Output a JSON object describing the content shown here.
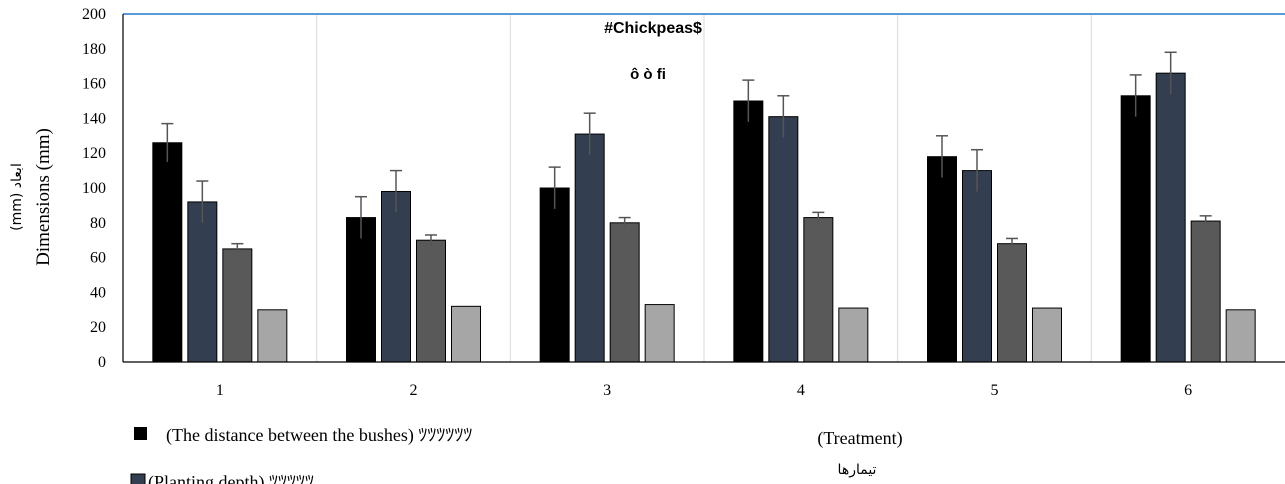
{
  "chart_data": {
    "type": "bar",
    "title": "#Chickpeas$",
    "subtitle": "ô ò fi",
    "ylabel": "Dimensions (mm)",
    "ylabel_secondary": "(mm) ابعاد",
    "xlabel": "(Treatment)",
    "xlabel_secondary": "تیمارها",
    "categories": [
      "1",
      "2",
      "3",
      "4",
      "5",
      "6"
    ],
    "ylim": [
      0,
      200
    ],
    "yticks": [
      "0",
      "20",
      "40",
      "60",
      "80",
      "100",
      "120",
      "140",
      "160",
      "180",
      "200"
    ],
    "grid": "vertical",
    "legend_placement": "bottom-left",
    "series": [
      {
        "name": "(The distance between the bushes) ﾂﾂﾂﾂﾂﾂ",
        "values": [
          126,
          83,
          100,
          150,
          118,
          153
        ],
        "errors": [
          11,
          12,
          12,
          12,
          12,
          12
        ],
        "color": "#000000"
      },
      {
        "name": "(Planting depth) ﾂﾂﾂﾂﾂ",
        "values": [
          92,
          98,
          131,
          141,
          110,
          166
        ],
        "errors": [
          12,
          12,
          12,
          12,
          12,
          12
        ],
        "color": "#333f50"
      },
      {
        "name": "",
        "values": [
          65,
          70,
          80,
          83,
          68,
          81
        ],
        "errors": [
          3,
          3,
          3,
          3,
          3,
          3
        ],
        "color": "#595959"
      },
      {
        "name": "",
        "values": [
          30,
          32,
          33,
          31,
          31,
          30
        ],
        "errors": [
          0,
          0,
          0,
          0,
          0,
          0
        ],
        "color": "#a6a6a6"
      }
    ]
  },
  "legend": {
    "entries": [
      {
        "text": "(The distance between the bushes) ﾂﾂﾂﾂﾂﾂ",
        "color": "#000000"
      },
      {
        "text": "(Planting depth) ﾂﾂﾂﾂﾂ",
        "color": "#333f50"
      }
    ]
  }
}
